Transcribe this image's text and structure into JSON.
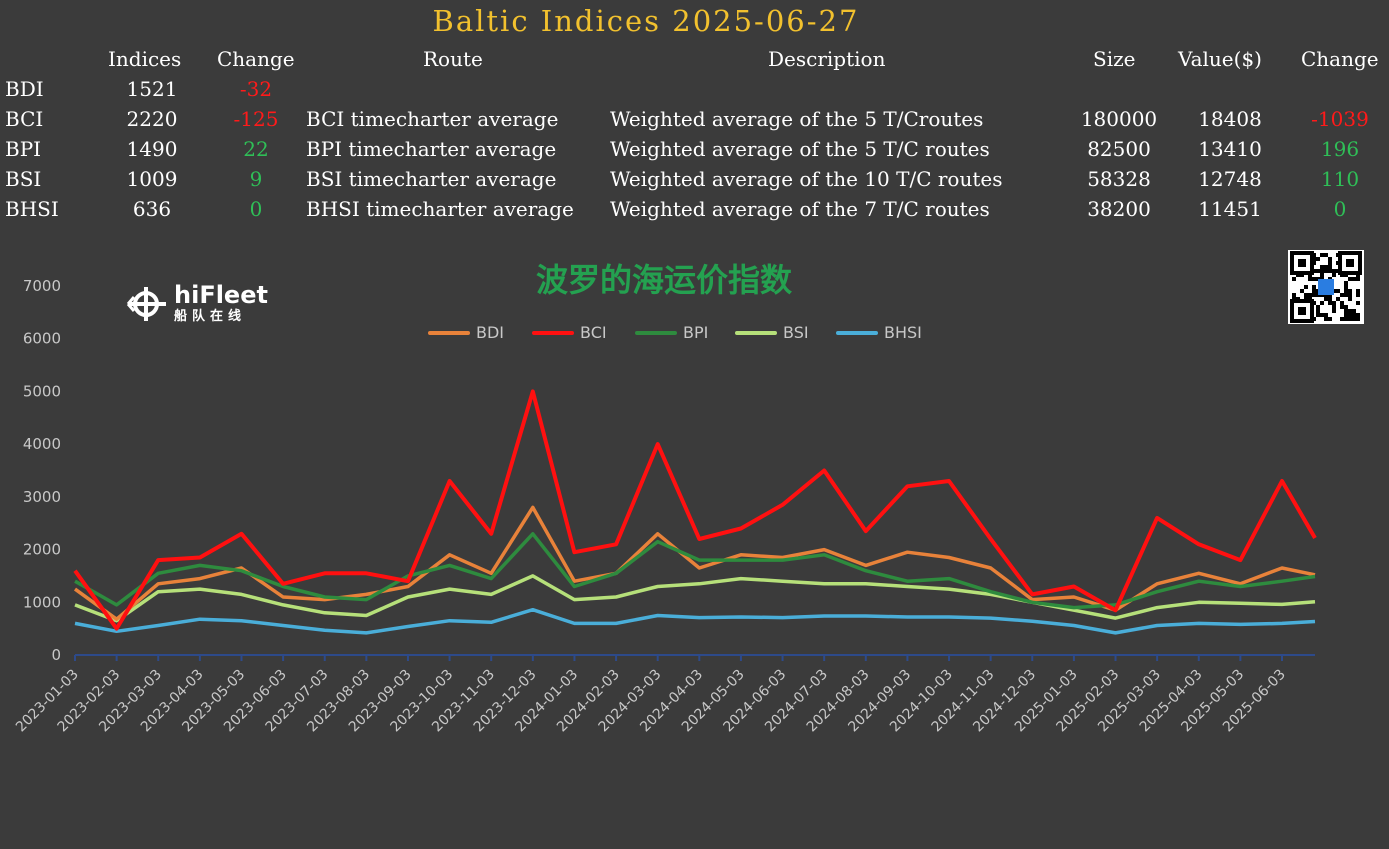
{
  "title": "Baltic Indices 2025-06-27",
  "table": {
    "headers": {
      "indices": "Indices",
      "change": "Change",
      "route": "Route",
      "description": "Description",
      "size": "Size",
      "value": "Value($)",
      "change2": "Change"
    },
    "rows": [
      {
        "name": "BDI",
        "index": "1521",
        "change": "-32",
        "change_sign": "neg",
        "route": "",
        "description": "",
        "size": "",
        "value": "",
        "change2": "",
        "change2_sign": ""
      },
      {
        "name": "BCI",
        "index": "2220",
        "change": "-125",
        "change_sign": "neg",
        "route": "BCI timecharter average",
        "description": "Weighted average of the 5 T/Croutes",
        "size": "180000",
        "value": "18408",
        "change2": "-1039",
        "change2_sign": "neg"
      },
      {
        "name": "BPI",
        "index": "1490",
        "change": "22",
        "change_sign": "pos",
        "route": "BPI timecharter average",
        "description": "Weighted average of the 5 T/C routes",
        "size": "82500",
        "value": "13410",
        "change2": "196",
        "change2_sign": "pos"
      },
      {
        "name": "BSI",
        "index": "1009",
        "change": "9",
        "change_sign": "pos",
        "route": "BSI timecharter average",
        "description": "Weighted average of the 10 T/C routes",
        "size": "58328",
        "value": "12748",
        "change2": "110",
        "change2_sign": "pos"
      },
      {
        "name": "BHSI",
        "index": "636",
        "change": "0",
        "change_sign": "zero",
        "route": "BHSI timecharter average",
        "description": "Weighted average of the 7 T/C routes",
        "size": "38200",
        "value": "11451",
        "change2": "0",
        "change2_sign": "zero"
      }
    ]
  },
  "logo": {
    "text": "hiFleet",
    "sub": "船队在线"
  },
  "chart_data": {
    "type": "line",
    "title": "波罗的海运价指数",
    "ylim": [
      0,
      7000
    ],
    "yticks": [
      "0",
      "1000",
      "2000",
      "3000",
      "4000",
      "5000",
      "6000",
      "7000"
    ],
    "x": [
      "2023-01-03",
      "2023-02-03",
      "2023-03-03",
      "2023-04-03",
      "2023-05-03",
      "2023-06-03",
      "2023-07-03",
      "2023-08-03",
      "2023-09-03",
      "2023-10-03",
      "2023-11-03",
      "2023-12-03",
      "2024-01-03",
      "2024-02-03",
      "2024-03-03",
      "2024-04-03",
      "2024-05-03",
      "2024-06-03",
      "2024-07-03",
      "2024-08-03",
      "2024-09-03",
      "2024-10-03",
      "2024-11-03",
      "2024-12-03",
      "2025-01-03",
      "2025-02-03",
      "2025-03-03",
      "2025-04-03",
      "2025-05-03",
      "2025-06-03",
      "2025-06-27"
    ],
    "xticks": [
      "2023-01-03",
      "2023-02-03",
      "2023-03-03",
      "2023-04-03",
      "2023-05-03",
      "2023-06-03",
      "2023-07-03",
      "2023-08-03",
      "2023-09-03",
      "2023-10-03",
      "2023-11-03",
      "2023-12-03",
      "2024-01-03",
      "2024-02-03",
      "2024-03-03",
      "2024-04-03",
      "2024-05-03",
      "2024-06-03",
      "2024-07-03",
      "2024-08-03",
      "2024-09-03",
      "2024-10-03",
      "2024-11-03",
      "2024-12-03",
      "2025-01-03",
      "2025-02-03",
      "2025-03-03",
      "2025-04-03",
      "2025-05-03",
      "2025-06-03"
    ],
    "series": [
      {
        "name": "BDI",
        "color": "#e8823a",
        "values": [
          1250,
          680,
          1350,
          1450,
          1650,
          1100,
          1050,
          1150,
          1300,
          1900,
          1550,
          2800,
          1400,
          1550,
          2300,
          1650,
          1900,
          1850,
          2000,
          1700,
          1950,
          1850,
          1650,
          1050,
          1100,
          850,
          1350,
          1550,
          1350,
          1650,
          1521
        ]
      },
      {
        "name": "BCI",
        "color": "#ff1010",
        "values": [
          1600,
          500,
          1800,
          1850,
          2300,
          1350,
          1550,
          1550,
          1400,
          3300,
          2300,
          5000,
          1950,
          2100,
          4000,
          2200,
          2400,
          2850,
          3500,
          2350,
          3200,
          3300,
          2200,
          1150,
          1300,
          850,
          2600,
          2100,
          1800,
          3300,
          2220
        ]
      },
      {
        "name": "BPI",
        "color": "#2e8b3e",
        "values": [
          1400,
          950,
          1550,
          1700,
          1600,
          1300,
          1100,
          1050,
          1500,
          1700,
          1450,
          2300,
          1300,
          1550,
          2150,
          1800,
          1800,
          1800,
          1900,
          1600,
          1400,
          1450,
          1200,
          1000,
          900,
          950,
          1200,
          1400,
          1300,
          1400,
          1490
        ]
      },
      {
        "name": "BSI",
        "color": "#b6e07a",
        "values": [
          950,
          650,
          1200,
          1250,
          1150,
          950,
          800,
          750,
          1100,
          1250,
          1150,
          1500,
          1050,
          1100,
          1300,
          1350,
          1450,
          1400,
          1350,
          1350,
          1300,
          1250,
          1150,
          1000,
          850,
          700,
          900,
          1000,
          980,
          960,
          1009
        ]
      },
      {
        "name": "BHSI",
        "color": "#4aaed9",
        "values": [
          600,
          450,
          560,
          680,
          650,
          560,
          470,
          420,
          540,
          650,
          620,
          860,
          600,
          600,
          750,
          710,
          720,
          710,
          740,
          740,
          720,
          720,
          700,
          640,
          560,
          420,
          560,
          600,
          580,
          600,
          636
        ]
      }
    ]
  }
}
